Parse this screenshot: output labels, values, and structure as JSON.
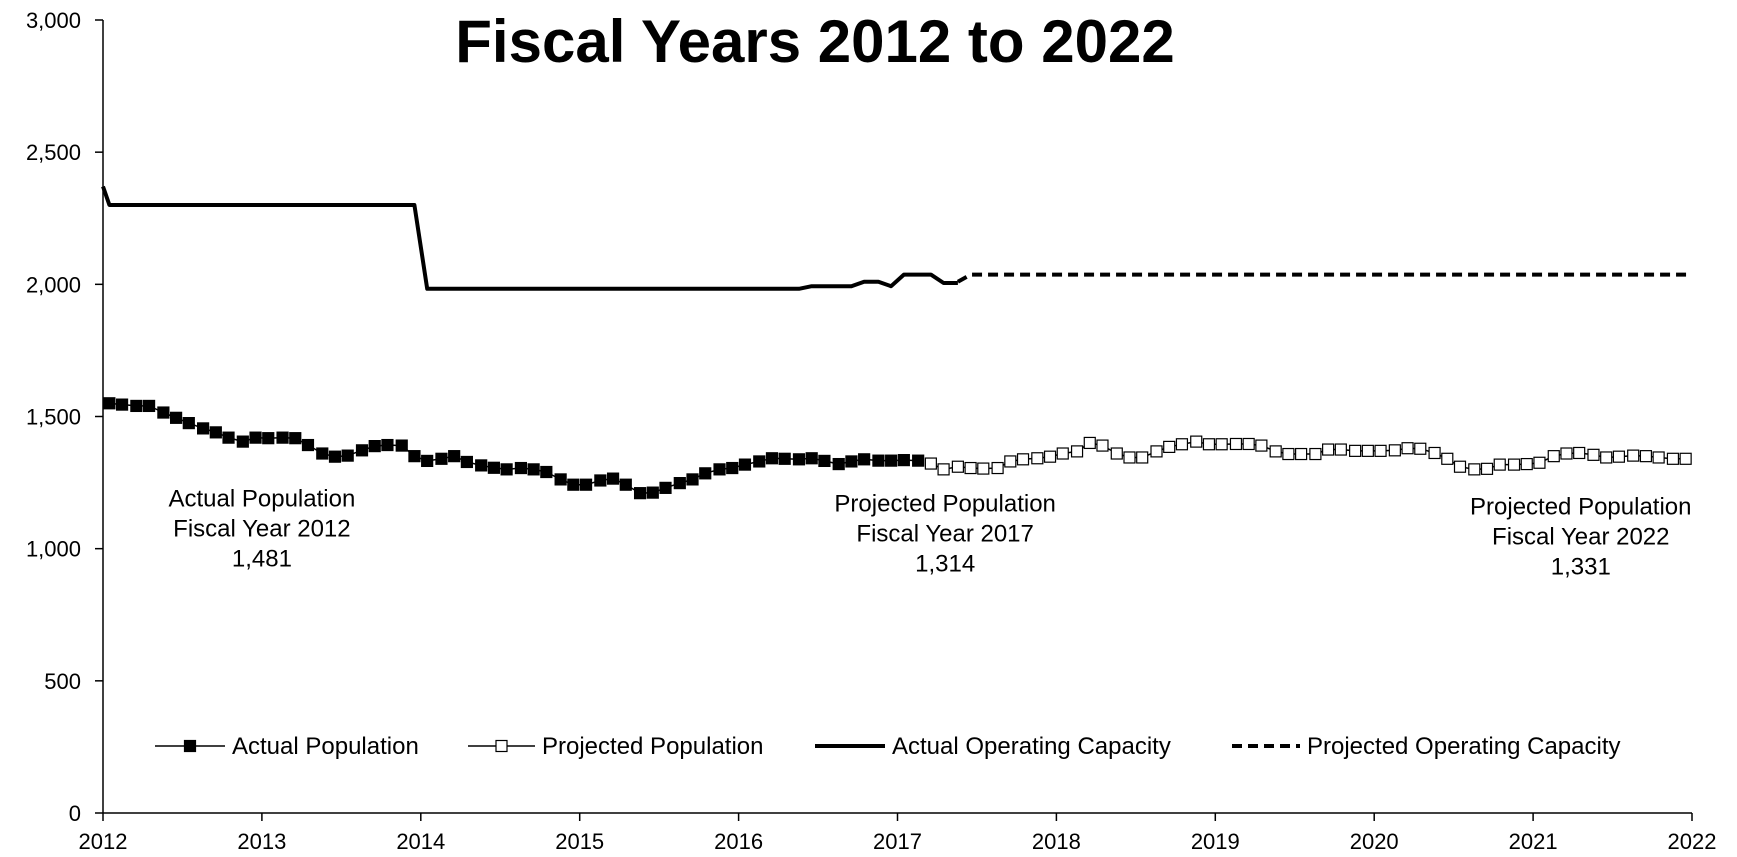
{
  "chart_data": {
    "type": "line",
    "title": "Fiscal Years 2012 to 2022",
    "xlabel": "",
    "ylabel": "",
    "xlim": [
      2012,
      2022
    ],
    "ylim": [
      0,
      3000
    ],
    "x_ticks": [
      "2012",
      "2013",
      "2014",
      "2015",
      "2016",
      "2017",
      "2018",
      "2019",
      "2020",
      "2021",
      "2022"
    ],
    "y_ticks": [
      "0",
      "500",
      "1,000",
      "1,500",
      "2,000",
      "2,500",
      "3,000"
    ],
    "grid": false,
    "legend_position": "bottom",
    "series": [
      {
        "name": "Actual Population",
        "style": "solid-filled-square",
        "color": "#000000",
        "x": [
          2012.04,
          2012.12,
          2012.21,
          2012.29,
          2012.38,
          2012.46,
          2012.54,
          2012.63,
          2012.71,
          2012.79,
          2012.88,
          2012.96,
          2013.04,
          2013.13,
          2013.21,
          2013.29,
          2013.38,
          2013.46,
          2013.54,
          2013.63,
          2013.71,
          2013.79,
          2013.88,
          2013.96,
          2014.04,
          2014.13,
          2014.21,
          2014.29,
          2014.38,
          2014.46,
          2014.54,
          2014.63,
          2014.71,
          2014.79,
          2014.88,
          2014.96,
          2015.04,
          2015.13,
          2015.21,
          2015.29,
          2015.38,
          2015.46,
          2015.54,
          2015.63,
          2015.71,
          2015.79,
          2015.88,
          2015.96,
          2016.04,
          2016.13,
          2016.21,
          2016.29,
          2016.38,
          2016.46,
          2016.54,
          2016.63,
          2016.71,
          2016.79,
          2016.88,
          2016.96,
          2017.04,
          2017.13
        ],
        "y": [
          1550,
          1545,
          1540,
          1540,
          1515,
          1495,
          1475,
          1455,
          1440,
          1420,
          1405,
          1420,
          1418,
          1420,
          1418,
          1392,
          1360,
          1348,
          1352,
          1372,
          1388,
          1392,
          1390,
          1350,
          1332,
          1340,
          1350,
          1328,
          1315,
          1306,
          1300,
          1305,
          1300,
          1290,
          1262,
          1242,
          1242,
          1258,
          1265,
          1242,
          1210,
          1212,
          1230,
          1248,
          1262,
          1285,
          1300,
          1305,
          1318,
          1330,
          1342,
          1340,
          1338,
          1342,
          1332,
          1320,
          1330,
          1338,
          1333,
          1333,
          1335,
          1333
        ]
      },
      {
        "name": "Projected Population",
        "style": "solid-hollow-square",
        "color": "#000000",
        "x": [
          2017.21,
          2017.29,
          2017.38,
          2017.46,
          2017.54,
          2017.63,
          2017.71,
          2017.79,
          2017.88,
          2017.96,
          2018.04,
          2018.13,
          2018.21,
          2018.29,
          2018.38,
          2018.46,
          2018.54,
          2018.63,
          2018.71,
          2018.79,
          2018.88,
          2018.96,
          2019.04,
          2019.13,
          2019.21,
          2019.29,
          2019.38,
          2019.46,
          2019.54,
          2019.63,
          2019.71,
          2019.79,
          2019.88,
          2019.96,
          2020.04,
          2020.13,
          2020.21,
          2020.29,
          2020.38,
          2020.46,
          2020.54,
          2020.63,
          2020.71,
          2020.79,
          2020.88,
          2020.96,
          2021.04,
          2021.13,
          2021.21,
          2021.29,
          2021.38,
          2021.46,
          2021.54,
          2021.63,
          2021.71,
          2021.79,
          2021.88,
          2021.96
        ],
        "y": [
          1322,
          1300,
          1310,
          1305,
          1303,
          1305,
          1330,
          1338,
          1342,
          1348,
          1360,
          1368,
          1400,
          1390,
          1360,
          1345,
          1345,
          1368,
          1385,
          1395,
          1405,
          1395,
          1395,
          1396,
          1396,
          1390,
          1368,
          1358,
          1358,
          1358,
          1375,
          1375,
          1370,
          1370,
          1370,
          1372,
          1380,
          1378,
          1362,
          1340,
          1310,
          1300,
          1302,
          1318,
          1318,
          1320,
          1325,
          1350,
          1360,
          1362,
          1355,
          1345,
          1348,
          1352,
          1350,
          1345,
          1340,
          1340
        ]
      },
      {
        "name": "Actual Operating Capacity",
        "style": "solid-thick",
        "color": "#000000",
        "x": [
          2012.0,
          2012.04,
          2013.96,
          2014.04,
          2016.38,
          2016.46,
          2016.54,
          2016.71,
          2016.79,
          2016.88,
          2016.96,
          2017.04,
          2017.13,
          2017.21,
          2017.29,
          2017.38
        ],
        "y": [
          2370,
          2300,
          2300,
          1983,
          1983,
          1993,
          1993,
          1993,
          2010,
          2010,
          1993,
          2037,
          2037,
          2037,
          2005,
          2005
        ]
      },
      {
        "name": "Projected Operating Capacity",
        "style": "dashed-thick",
        "color": "#000000",
        "x": [
          2017.38,
          2017.46,
          2022.0
        ],
        "y": [
          2010,
          2037,
          2037
        ]
      }
    ],
    "annotations": [
      {
        "lines": [
          "Actual Population",
          "Fiscal Year 2012",
          "1,481"
        ],
        "x": 2013.0,
        "y": 1160
      },
      {
        "lines": [
          "Projected Population",
          "Fiscal Year 2017",
          "1,314"
        ],
        "x": 2017.3,
        "y": 1140
      },
      {
        "lines": [
          "Projected Population",
          "Fiscal Year 2022",
          "1,331"
        ],
        "x": 2021.3,
        "y": 1130
      }
    ]
  }
}
